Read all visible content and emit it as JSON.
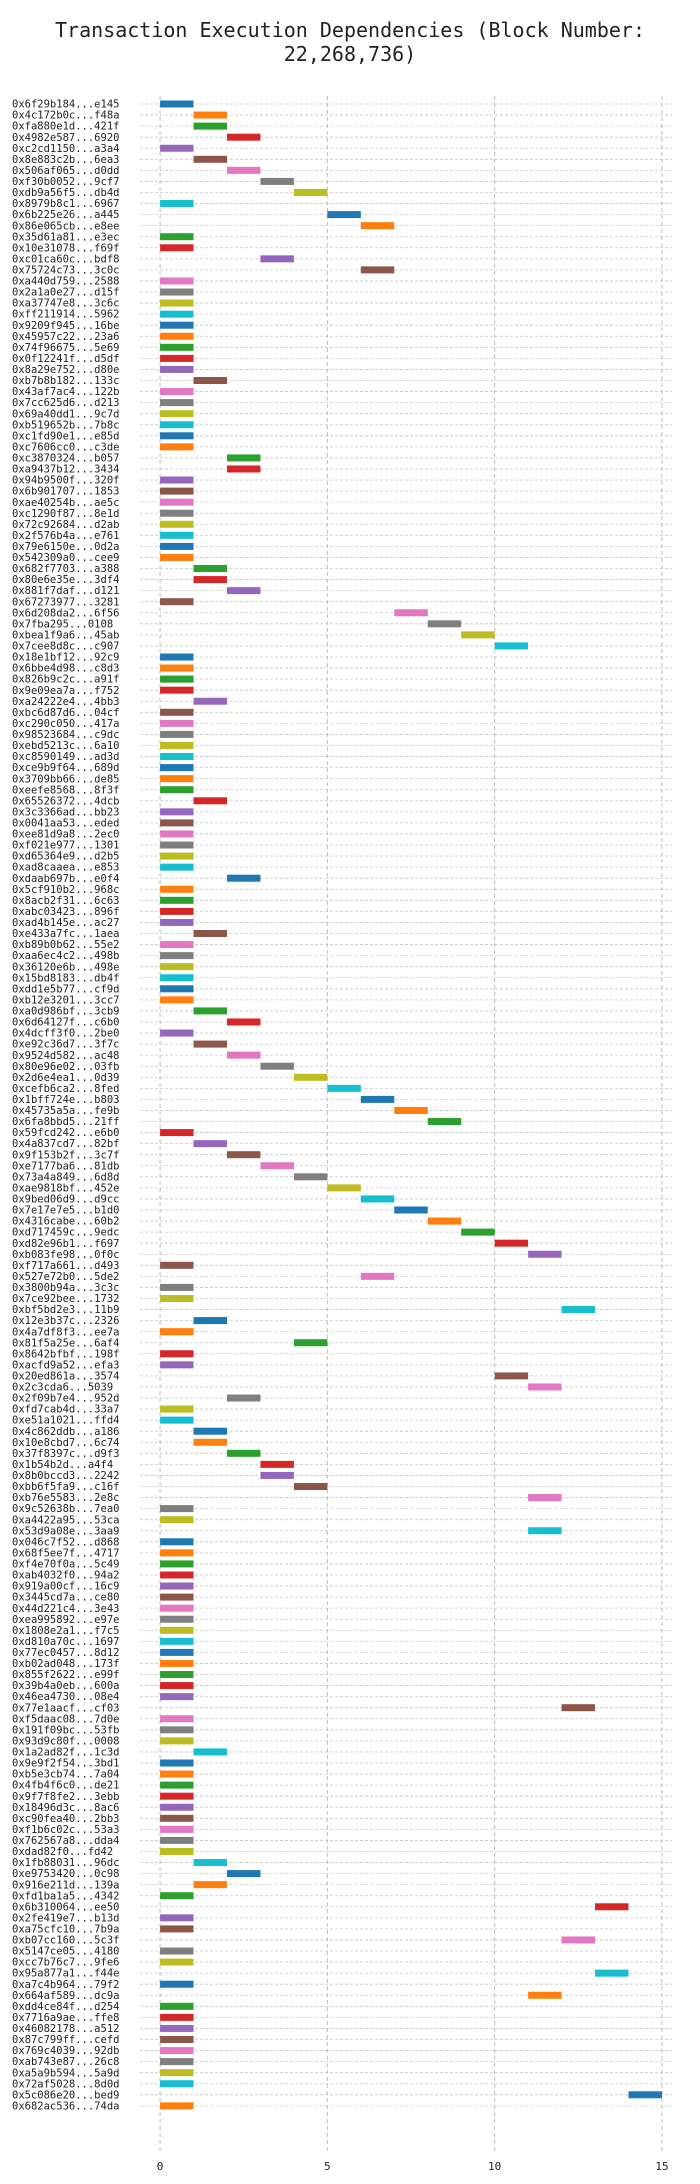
{
  "chart_data": {
    "type": "bar",
    "orientation": "horizontal-gantt",
    "title": "Transaction Execution Dependencies (Block Number: 22,268,736)",
    "xlabel": "",
    "ylabel": "",
    "xlim": [
      -0.6,
      15.3
    ],
    "xticks": [
      0,
      5,
      10,
      15
    ],
    "grid": true,
    "palette": [
      "#1f77b4",
      "#ff7f0e",
      "#2ca02c",
      "#d62728",
      "#9467bd",
      "#8c564b",
      "#e377c2",
      "#7f7f7f",
      "#bcbd22",
      "#17becf"
    ],
    "transactions": [
      "0x6f29b184...e145",
      "0x4c172b0c...f48a",
      "0xfa880e1d...421f",
      "0x4982e587...6920",
      "0xc2cd1150...a3a4",
      "0x8e883c2b...6ea3",
      "0x506af065...d0dd",
      "0xf30b0052...9cf7",
      "0xdb9a56f5...db4d",
      "0x8979b8c1...6967",
      "0x6b225e26...a445",
      "0x86e065cb...e8ee",
      "0x35d61a81...e3ec",
      "0x10e31078...f69f",
      "0xc01ca60c...bdf8",
      "0x75724c73...3c0c",
      "0xa440d759...2588",
      "0x2a1a0e27...d15f",
      "0xa37747e8...3c6c",
      "0xff211914...5962",
      "0x9209f945...16be",
      "0x45957c22...23a6",
      "0x74f96675...5e69",
      "0x0f12241f...d5df",
      "0x8a29e752...d80e",
      "0xb7b8b182...133c",
      "0x43af7ac4...122b",
      "0x7cc625d6...d213",
      "0x69a40dd1...9c7d",
      "0xb519652b...7b8c",
      "0xc1fd90e1...e85d",
      "0xc7606cc0...c3de",
      "0xc3870324...b057",
      "0xa9437b12...3434",
      "0x94b9500f...320f",
      "0x6b901707...1853",
      "0xae40254b...ae5c",
      "0xc1290f87...8e1d",
      "0x72c92684...d2ab",
      "0x2f576b4a...e761",
      "0x79e6150e...0d2a",
      "0x542309a0...cee9",
      "0x682f7703...a388",
      "0x80e6e35e...3df4",
      "0x881f7daf...d121",
      "0x67273977...3281",
      "0x6d208da2...6f56",
      "0x7fba295...0108",
      "0xbea1f9a6...45ab",
      "0x7cee8d8c...c907",
      "0x18e1bf12...92c9",
      "0x6bbe4d98...c8d3",
      "0x826b9c2c...a91f",
      "0x9e09ea7a...f752",
      "0xa24222e4...4bb3",
      "0xbc6d87d6...04cf",
      "0xc290c050...417a",
      "0x98523684...c9dc",
      "0xebd5213c...6a10",
      "0xc8590149...ad3d",
      "0xce9b9f64...689d",
      "0x3709bb66...de85",
      "0xeefe8568...8f3f",
      "0x65526372...4dcb",
      "0x3c3366ad...bb23",
      "0x0041aa53...eded",
      "0xee81d9a8...2ec0",
      "0xf021e977...1301",
      "0xd65364e9...d2b5",
      "0xad8caaea...e853",
      "0xdaab697b...e0f4",
      "0x5cf910b2...968c",
      "0x8acb2f31...6c63",
      "0xabc03423...896f",
      "0xad4b145e...ac27",
      "0xe433a7fc...1aea",
      "0xb89b0b62...55e2",
      "0xaa6ec4c2...498b",
      "0x36120e6b...498e",
      "0x15bd8183...db4f",
      "0xdd1e5b77...cf9d",
      "0xb12e3201...3cc7",
      "0xa0d986bf...3cb9",
      "0x6d64127f...c6b0",
      "0x4dcff3f0...2be0",
      "0xe92c36d7...3f7c",
      "0x9524d582...ac48",
      "0x80e96e02...03fb",
      "0x2d6e4ea1...0d39",
      "0xcefb6ca2...8fed",
      "0x1bff724e...b803",
      "0x45735a5a...fe9b",
      "0x6fa8bbd5...21ff",
      "0x59fcd242...e6b0",
      "0x4a837cd7...82bf",
      "0x9f153b2f...3c7f",
      "0xe7177ba6...81db",
      "0x73a4a849...6d8d",
      "0xae9818bf...452e",
      "0x9bed06d9...d9cc",
      "0x7e17e7e5...b1d0",
      "0x4316cabe...60b2",
      "0xd717459c...9edc",
      "0xd82e96b1...f697",
      "0xb083fe98...0f0c",
      "0xf717a661...d493",
      "0x527e72b0...5de2",
      "0x3800b94a...3c3c",
      "0x7ce92bee...1732",
      "0xbf5bd2e3...11b9",
      "0x12e3b37c...2326",
      "0x4a7df8f3...ee7a",
      "0x81f5a25e...6af4",
      "0x8642bfbf...198f",
      "0xacfd9a52...efa3",
      "0x20ed861a...3574",
      "0x2c3cda6...5039",
      "0x2f09b7e4...952d",
      "0xfd7cab4d...33a7",
      "0xe51a1021...ffd4",
      "0x4c862ddb...a186",
      "0x10e8cbd7...6c74",
      "0x37f8397c...d9f3",
      "0x1b54b2d...a4f4",
      "0x8b0bccd3...2242",
      "0xbb6f5fa9...c16f",
      "0xb76e5583...2e8c",
      "0x9c52638b...7ea0",
      "0xa4422a95...53ca",
      "0x53d9a08e...3aa9",
      "0x046c7f52...d868",
      "0x68f5ee7f...4717",
      "0xf4e70f0a...5c49",
      "0xab4032f0...94a2",
      "0x919a00cf...16c9",
      "0x3445cd7a...ce80",
      "0x44d221c4...3e43",
      "0xea995892...e97e",
      "0x1808e2a1...f7c5",
      "0xd810a70c...1697",
      "0x77ec0457...8d12",
      "0xb02ad048...173f",
      "0x855f2622...e99f",
      "0x39b4a0eb...600a",
      "0x46ea4730...08e4",
      "0x77e1aacf...cf03",
      "0xf5daac08...7d0e",
      "0x191f09bc...53fb",
      "0x93d9c80f...0008",
      "0x1a2ad82f...1c3d",
      "0x9e9f2f54...3bd1",
      "0xb5e3cb74...7a04",
      "0x4fb4f6c0...de21",
      "0x9f7f8fe2...3ebb",
      "0x18496d3c...8ac6",
      "0xc90fea40...2bb3",
      "0xf1b6c02c...53a3",
      "0x762567a8...dda4",
      "0xdad82f0...fd42",
      "0x1fb88031...96dc",
      "0xe9753420...0c98",
      "0x916e211d...139a",
      "0xfd1ba1a5...4342",
      "0x6b310064...ee50",
      "0x2fe419e7...b13d",
      "0xa75cfc10...7b9a",
      "0xb07cc160...5c3f",
      "0x5147ce05...4180",
      "0xcc7b76c7...9fe6",
      "0x95a877a1...f44e",
      "0xa7c4b964...79f2",
      "0x664af589...dc9a",
      "0xdd4ce84f...d254",
      "0x7716a9ae...ffe8",
      "0x46082178...a512",
      "0x87c799ff...cefd",
      "0x769c4039...92db",
      "0xab743e87...26c8",
      "0xa5a9b594...5a9d",
      "0x72af5028...8d0d",
      "0x5c086e20...bed9",
      "0x682ac536...74da"
    ],
    "bars": [
      [
        0,
        1,
        0
      ],
      [
        1,
        2,
        1
      ],
      [
        1,
        2,
        2
      ],
      [
        2,
        3,
        3
      ],
      [
        0,
        1,
        4
      ],
      [
        1,
        2,
        5
      ],
      [
        2,
        3,
        6
      ],
      [
        3,
        4,
        7
      ],
      [
        4,
        5,
        8
      ],
      [
        0,
        1,
        9
      ],
      [
        5,
        6,
        0
      ],
      [
        6,
        7,
        1
      ],
      [
        0,
        1,
        2
      ],
      [
        0,
        1,
        3
      ],
      [
        3,
        4,
        4
      ],
      [
        6,
        7,
        5
      ],
      [
        0,
        1,
        6
      ],
      [
        0,
        1,
        7
      ],
      [
        0,
        1,
        8
      ],
      [
        0,
        1,
        9
      ],
      [
        0,
        1,
        0
      ],
      [
        0,
        1,
        1
      ],
      [
        0,
        1,
        2
      ],
      [
        0,
        1,
        3
      ],
      [
        0,
        1,
        4
      ],
      [
        1,
        2,
        5
      ],
      [
        0,
        1,
        6
      ],
      [
        0,
        1,
        7
      ],
      [
        0,
        1,
        8
      ],
      [
        0,
        1,
        9
      ],
      [
        0,
        1,
        0
      ],
      [
        0,
        1,
        1
      ],
      [
        2,
        3,
        2
      ],
      [
        2,
        3,
        3
      ],
      [
        0,
        1,
        4
      ],
      [
        0,
        1,
        5
      ],
      [
        0,
        1,
        6
      ],
      [
        0,
        1,
        7
      ],
      [
        0,
        1,
        8
      ],
      [
        0,
        1,
        9
      ],
      [
        0,
        1,
        0
      ],
      [
        0,
        1,
        1
      ],
      [
        1,
        2,
        2
      ],
      [
        1,
        2,
        3
      ],
      [
        2,
        3,
        4
      ],
      [
        0,
        1,
        5
      ],
      [
        7,
        8,
        6
      ],
      [
        8,
        9,
        7
      ],
      [
        9,
        10,
        8
      ],
      [
        10,
        11,
        9
      ],
      [
        0,
        1,
        0
      ],
      [
        0,
        1,
        1
      ],
      [
        0,
        1,
        2
      ],
      [
        0,
        1,
        3
      ],
      [
        1,
        2,
        4
      ],
      [
        0,
        1,
        5
      ],
      [
        0,
        1,
        6
      ],
      [
        0,
        1,
        7
      ],
      [
        0,
        1,
        8
      ],
      [
        0,
        1,
        9
      ],
      [
        0,
        1,
        0
      ],
      [
        0,
        1,
        1
      ],
      [
        0,
        1,
        2
      ],
      [
        1,
        2,
        3
      ],
      [
        0,
        1,
        4
      ],
      [
        0,
        1,
        5
      ],
      [
        0,
        1,
        6
      ],
      [
        0,
        1,
        7
      ],
      [
        0,
        1,
        8
      ],
      [
        0,
        1,
        9
      ],
      [
        2,
        3,
        0
      ],
      [
        0,
        1,
        1
      ],
      [
        0,
        1,
        2
      ],
      [
        0,
        1,
        3
      ],
      [
        0,
        1,
        4
      ],
      [
        1,
        2,
        5
      ],
      [
        0,
        1,
        6
      ],
      [
        0,
        1,
        7
      ],
      [
        0,
        1,
        8
      ],
      [
        0,
        1,
        9
      ],
      [
        0,
        1,
        0
      ],
      [
        0,
        1,
        1
      ],
      [
        1,
        2,
        2
      ],
      [
        2,
        3,
        3
      ],
      [
        0,
        1,
        4
      ],
      [
        1,
        2,
        5
      ],
      [
        2,
        3,
        6
      ],
      [
        3,
        4,
        7
      ],
      [
        4,
        5,
        8
      ],
      [
        5,
        6,
        9
      ],
      [
        6,
        7,
        0
      ],
      [
        7,
        8,
        1
      ],
      [
        8,
        9,
        2
      ],
      [
        0,
        1,
        3
      ],
      [
        1,
        2,
        4
      ],
      [
        2,
        3,
        5
      ],
      [
        3,
        4,
        6
      ],
      [
        4,
        5,
        7
      ],
      [
        5,
        6,
        8
      ],
      [
        6,
        7,
        9
      ],
      [
        7,
        8,
        0
      ],
      [
        8,
        9,
        1
      ],
      [
        9,
        10,
        2
      ],
      [
        10,
        11,
        3
      ],
      [
        11,
        12,
        4
      ],
      [
        0,
        1,
        5
      ],
      [
        6,
        7,
        6
      ],
      [
        0,
        1,
        7
      ],
      [
        0,
        1,
        8
      ],
      [
        12,
        13,
        9
      ],
      [
        1,
        2,
        0
      ],
      [
        0,
        1,
        1
      ],
      [
        4,
        5,
        2
      ],
      [
        0,
        1,
        3
      ],
      [
        0,
        1,
        4
      ],
      [
        10,
        11,
        5
      ],
      [
        11,
        12,
        6
      ],
      [
        2,
        3,
        7
      ],
      [
        0,
        1,
        8
      ],
      [
        0,
        1,
        9
      ],
      [
        1,
        2,
        0
      ],
      [
        1,
        2,
        1
      ],
      [
        2,
        3,
        2
      ],
      [
        3,
        4,
        3
      ],
      [
        3,
        4,
        4
      ],
      [
        4,
        5,
        5
      ],
      [
        11,
        12,
        6
      ],
      [
        0,
        1,
        7
      ],
      [
        0,
        1,
        8
      ],
      [
        11,
        12,
        9
      ],
      [
        0,
        1,
        0
      ],
      [
        0,
        1,
        1
      ],
      [
        0,
        1,
        2
      ],
      [
        0,
        1,
        3
      ],
      [
        0,
        1,
        4
      ],
      [
        0,
        1,
        5
      ],
      [
        0,
        1,
        6
      ],
      [
        0,
        1,
        7
      ],
      [
        0,
        1,
        8
      ],
      [
        0,
        1,
        9
      ],
      [
        0,
        1,
        0
      ],
      [
        0,
        1,
        1
      ],
      [
        0,
        1,
        2
      ],
      [
        0,
        1,
        3
      ],
      [
        0,
        1,
        4
      ],
      [
        12,
        13,
        5
      ],
      [
        0,
        1,
        6
      ],
      [
        0,
        1,
        7
      ],
      [
        0,
        1,
        8
      ],
      [
        1,
        2,
        9
      ],
      [
        0,
        1,
        0
      ],
      [
        0,
        1,
        1
      ],
      [
        0,
        1,
        2
      ],
      [
        0,
        1,
        3
      ],
      [
        0,
        1,
        4
      ],
      [
        0,
        1,
        5
      ],
      [
        0,
        1,
        6
      ],
      [
        0,
        1,
        7
      ],
      [
        0,
        1,
        8
      ],
      [
        1,
        2,
        9
      ],
      [
        2,
        3,
        0
      ],
      [
        1,
        2,
        1
      ],
      [
        0,
        1,
        2
      ],
      [
        13,
        14,
        3
      ],
      [
        0,
        1,
        4
      ],
      [
        0,
        1,
        5
      ],
      [
        12,
        13,
        6
      ],
      [
        0,
        1,
        7
      ],
      [
        0,
        1,
        8
      ],
      [
        13,
        14,
        9
      ],
      [
        0,
        1,
        0
      ],
      [
        11,
        12,
        1
      ],
      [
        0,
        1,
        2
      ],
      [
        0,
        1,
        3
      ],
      [
        0,
        1,
        4
      ],
      [
        0,
        1,
        5
      ],
      [
        0,
        1,
        6
      ],
      [
        0,
        1,
        7
      ],
      [
        0,
        1,
        8
      ],
      [
        0,
        1,
        9
      ],
      [
        14,
        15,
        0
      ],
      [
        0,
        1,
        1
      ]
    ]
  }
}
